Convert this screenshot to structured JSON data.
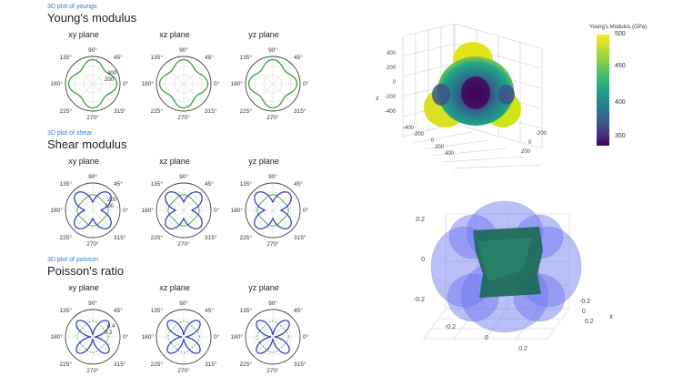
{
  "sections": [
    {
      "id": "young",
      "link": "3D plot of youngs",
      "title": "Young's modulus",
      "radial_labels": [
        "400",
        "200"
      ],
      "shape": "young",
      "plots": [
        "xy plane",
        "xz plane",
        "yz plane"
      ]
    },
    {
      "id": "shear",
      "link": "3D plot of shear",
      "title": "Shear modulus",
      "radial_labels": [
        "200",
        "100"
      ],
      "shape": "shear",
      "plots": [
        "xy plane",
        "xz plane",
        "yz plane"
      ]
    },
    {
      "id": "poisson",
      "link": "3D plot of poisson",
      "title": "Poisson's ratio",
      "radial_labels": [
        "0.4",
        "0.2"
      ],
      "shape": "poisson",
      "plots": [
        "xy plane",
        "xz plane",
        "yz plane"
      ]
    }
  ],
  "angle_labels": [
    "0°",
    "45°",
    "90°",
    "135°",
    "180°",
    "225°",
    "270°",
    "315°"
  ],
  "colors": {
    "green": "#3f9e3f",
    "blue": "#3a45b8",
    "link": "#2a7fd0"
  },
  "young3d": {
    "z_ticks": [
      "400",
      "200",
      "0",
      "-200",
      "-400"
    ],
    "x_ticks": [
      "-400",
      "-200",
      "0",
      "200",
      "400"
    ],
    "y_ticks": [
      "200",
      "0",
      "-200"
    ],
    "z_label": "z",
    "colorbar": {
      "title": "Young's Modulus (GPa)",
      "ticks": [
        "500",
        "450",
        "400",
        "350"
      ]
    }
  },
  "shear3d": {
    "left_ticks": [
      "0.2",
      "0",
      "-0.2"
    ],
    "right_ticks": [
      "-0.2",
      "0",
      "0.2"
    ],
    "bottom_ticks": [
      "-0.2",
      "0",
      "0.2"
    ],
    "x_label": "x"
  }
}
